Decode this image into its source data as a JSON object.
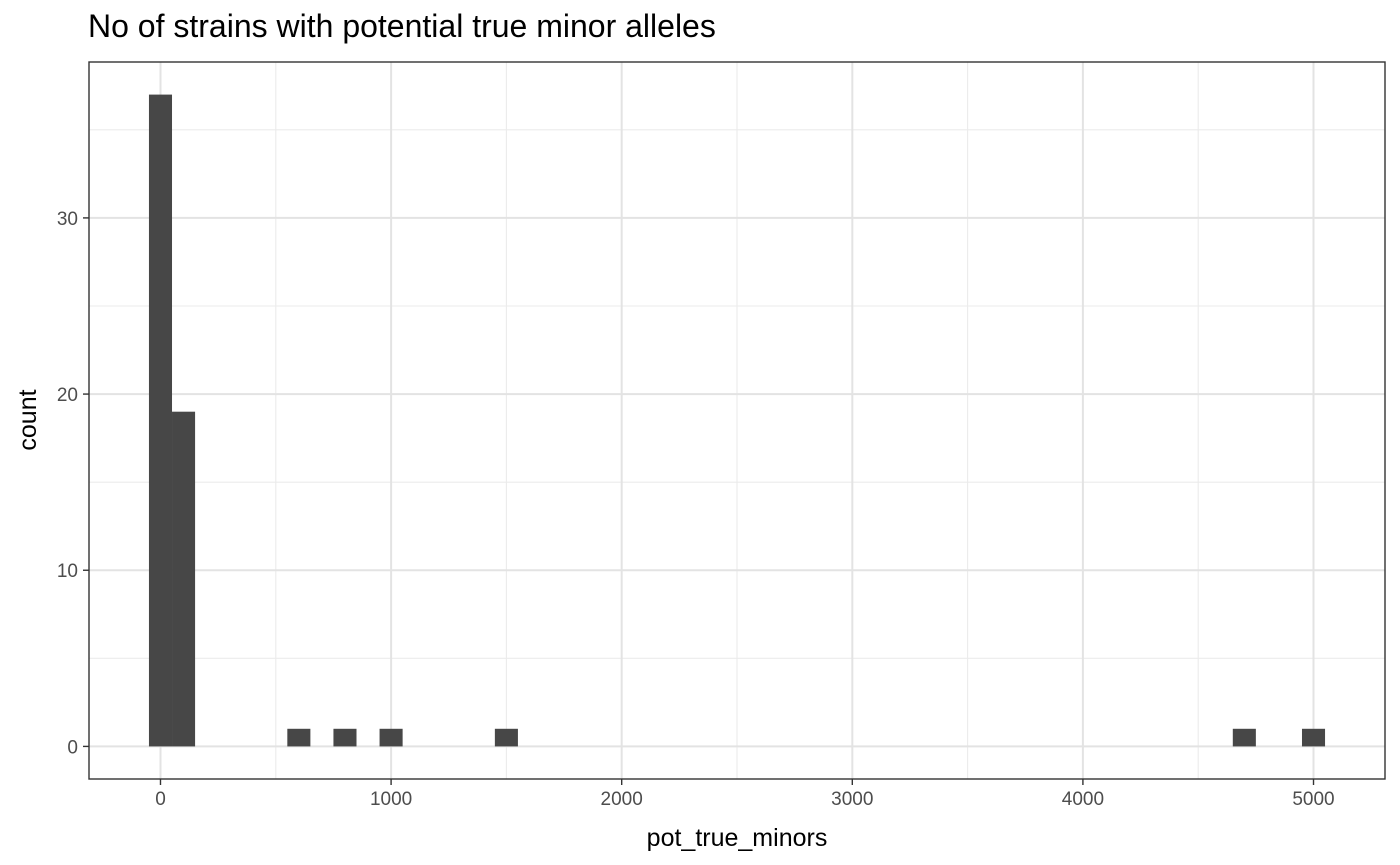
{
  "chart_data": {
    "type": "bar",
    "title": "No of strains with potential true minor alleles",
    "xlabel": "pot_true_minors",
    "ylabel": "count",
    "xlim": [
      -310,
      5310
    ],
    "ylim": [
      -1.85,
      38.85
    ],
    "xticks": [
      0,
      1000,
      2000,
      3000,
      4000,
      5000
    ],
    "yticks": [
      0,
      10,
      20,
      30
    ],
    "grid": true,
    "bin_width": 100,
    "bins": [
      {
        "x": 0,
        "count": 37
      },
      {
        "x": 100,
        "count": 19
      },
      {
        "x": 600,
        "count": 1
      },
      {
        "x": 800,
        "count": 1
      },
      {
        "x": 1000,
        "count": 1
      },
      {
        "x": 1500,
        "count": 1
      },
      {
        "x": 4700,
        "count": 1
      },
      {
        "x": 5000,
        "count": 1
      }
    ],
    "bar_color": "#474747"
  }
}
